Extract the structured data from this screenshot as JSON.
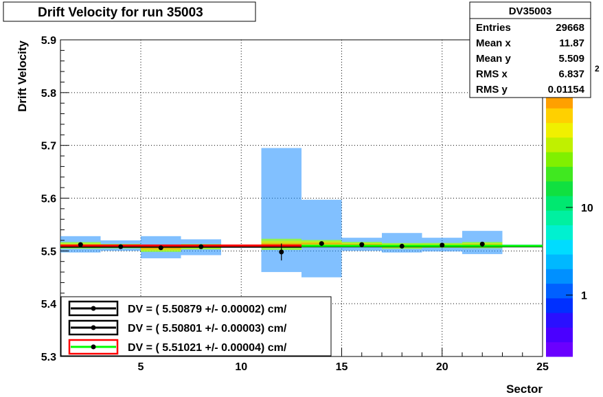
{
  "title": "Drift Velocity for run 35003",
  "stats": {
    "name": "DV35003",
    "rows": [
      {
        "label": "Entries",
        "value": "29668"
      },
      {
        "label": "Mean x",
        "value": "11.87"
      },
      {
        "label": "Mean y",
        "value": "5.509"
      },
      {
        "label": "RMS x",
        "value": "6.837"
      },
      {
        "label": "RMS y",
        "value": "0.01154"
      }
    ]
  },
  "legend": [
    {
      "text": "DV = (   5.50879 +/-    0.00002) cm/",
      "line_color": "#000000",
      "box_color": "#000000"
    },
    {
      "text": "DV = (   5.50801 +/-    0.00003) cm/",
      "line_color": "#000000",
      "box_color": "#000000"
    },
    {
      "text": "DV = (   5.51021 +/-    0.00004) cm/",
      "line_color": "#00ff00",
      "box_color": "#ff0000"
    }
  ],
  "palette": {
    "ticks": [
      {
        "text": "1",
        "value": 1
      },
      {
        "text": "10",
        "value": 10
      }
    ],
    "exponent": "2",
    "colors": [
      "#6a00ff",
      "#4a00ff",
      "#2a10ff",
      "#0030ff",
      "#0060ff",
      "#0090ff",
      "#00b8ff",
      "#00dcff",
      "#00f0d0",
      "#00f0a0",
      "#00e870",
      "#10e040",
      "#40e820",
      "#80f000",
      "#c0f000",
      "#f0f000",
      "#ffd000",
      "#ffa000"
    ]
  },
  "chart_data": {
    "type": "heatmap",
    "title": "Drift Velocity for run 35003",
    "xlabel": "Sector",
    "ylabel": "Drift Velocity",
    "xlim": [
      1,
      25
    ],
    "ylim": [
      5.3,
      5.9
    ],
    "xticks": [
      5,
      10,
      15,
      20,
      25
    ],
    "yticks": [
      5.3,
      5.4,
      5.5,
      5.6,
      5.7,
      5.8,
      5.9
    ],
    "ytick_labels": [
      "5.3",
      "5.4",
      "5.5",
      "5.6",
      "5.7",
      "5.8",
      "5.9"
    ],
    "grid": true,
    "colorscale": "log",
    "points": [
      {
        "x": 2,
        "y": 5.512,
        "err": 0.001
      },
      {
        "x": 4,
        "y": 5.508,
        "err": 0.001
      },
      {
        "x": 6,
        "y": 5.506,
        "err": 0.001
      },
      {
        "x": 8,
        "y": 5.508,
        "err": 0.001
      },
      {
        "x": 12,
        "y": 5.498,
        "err": 0.016
      },
      {
        "x": 14,
        "y": 5.514,
        "err": 0.002
      },
      {
        "x": 16,
        "y": 5.512,
        "err": 0.001
      },
      {
        "x": 18,
        "y": 5.509,
        "err": 0.001
      },
      {
        "x": 20,
        "y": 5.511,
        "err": 0.001
      },
      {
        "x": 22,
        "y": 5.513,
        "err": 0.001
      }
    ],
    "fit_lines": [
      {
        "name": "DV = 5.50879",
        "color": "#000000",
        "x": [
          13,
          25
        ],
        "y": 5.50879
      },
      {
        "name": "DV = 5.50801",
        "color": "#000000",
        "x": [
          1,
          13
        ],
        "y": 5.50801
      },
      {
        "name": "DV = 5.51021",
        "color": "#ff0000",
        "x": [
          1,
          13
        ],
        "y": 5.51021
      },
      {
        "name": "DV (green)",
        "color": "#00ff00",
        "x": [
          13,
          25
        ],
        "y": 5.5095
      }
    ],
    "cells": [
      {
        "x0": 1,
        "x1": 3,
        "y0": 5.497,
        "y1": 5.528,
        "core": [
          5.503,
          5.518
        ]
      },
      {
        "x0": 3,
        "x1": 5,
        "y0": 5.5,
        "y1": 5.52,
        "core": [
          5.504,
          5.514
        ]
      },
      {
        "x0": 5,
        "x1": 7,
        "y0": 5.486,
        "y1": 5.528,
        "core": [
          5.497,
          5.512
        ]
      },
      {
        "x0": 7,
        "x1": 9,
        "y0": 5.492,
        "y1": 5.522,
        "core": [
          5.502,
          5.514
        ]
      },
      {
        "x0": 11,
        "x1": 13,
        "y0": 5.46,
        "y1": 5.695,
        "core": [
          5.5,
          5.525
        ]
      },
      {
        "x0": 13,
        "x1": 15,
        "y0": 5.45,
        "y1": 5.597,
        "core": [
          5.506,
          5.522
        ]
      },
      {
        "x0": 15,
        "x1": 17,
        "y0": 5.5,
        "y1": 5.525,
        "core": [
          5.506,
          5.518
        ]
      },
      {
        "x0": 17,
        "x1": 19,
        "y0": 5.497,
        "y1": 5.534,
        "core": [
          5.503,
          5.516
        ]
      },
      {
        "x0": 19,
        "x1": 21,
        "y0": 5.499,
        "y1": 5.525,
        "core": [
          5.505,
          5.516
        ]
      },
      {
        "x0": 21,
        "x1": 23,
        "y0": 5.494,
        "y1": 5.538,
        "core": [
          5.504,
          5.518
        ]
      },
      {
        "x0": 23,
        "x1": 25,
        "y0": 5.507,
        "y1": 5.512,
        "core": [
          5.508,
          5.511
        ]
      }
    ]
  }
}
